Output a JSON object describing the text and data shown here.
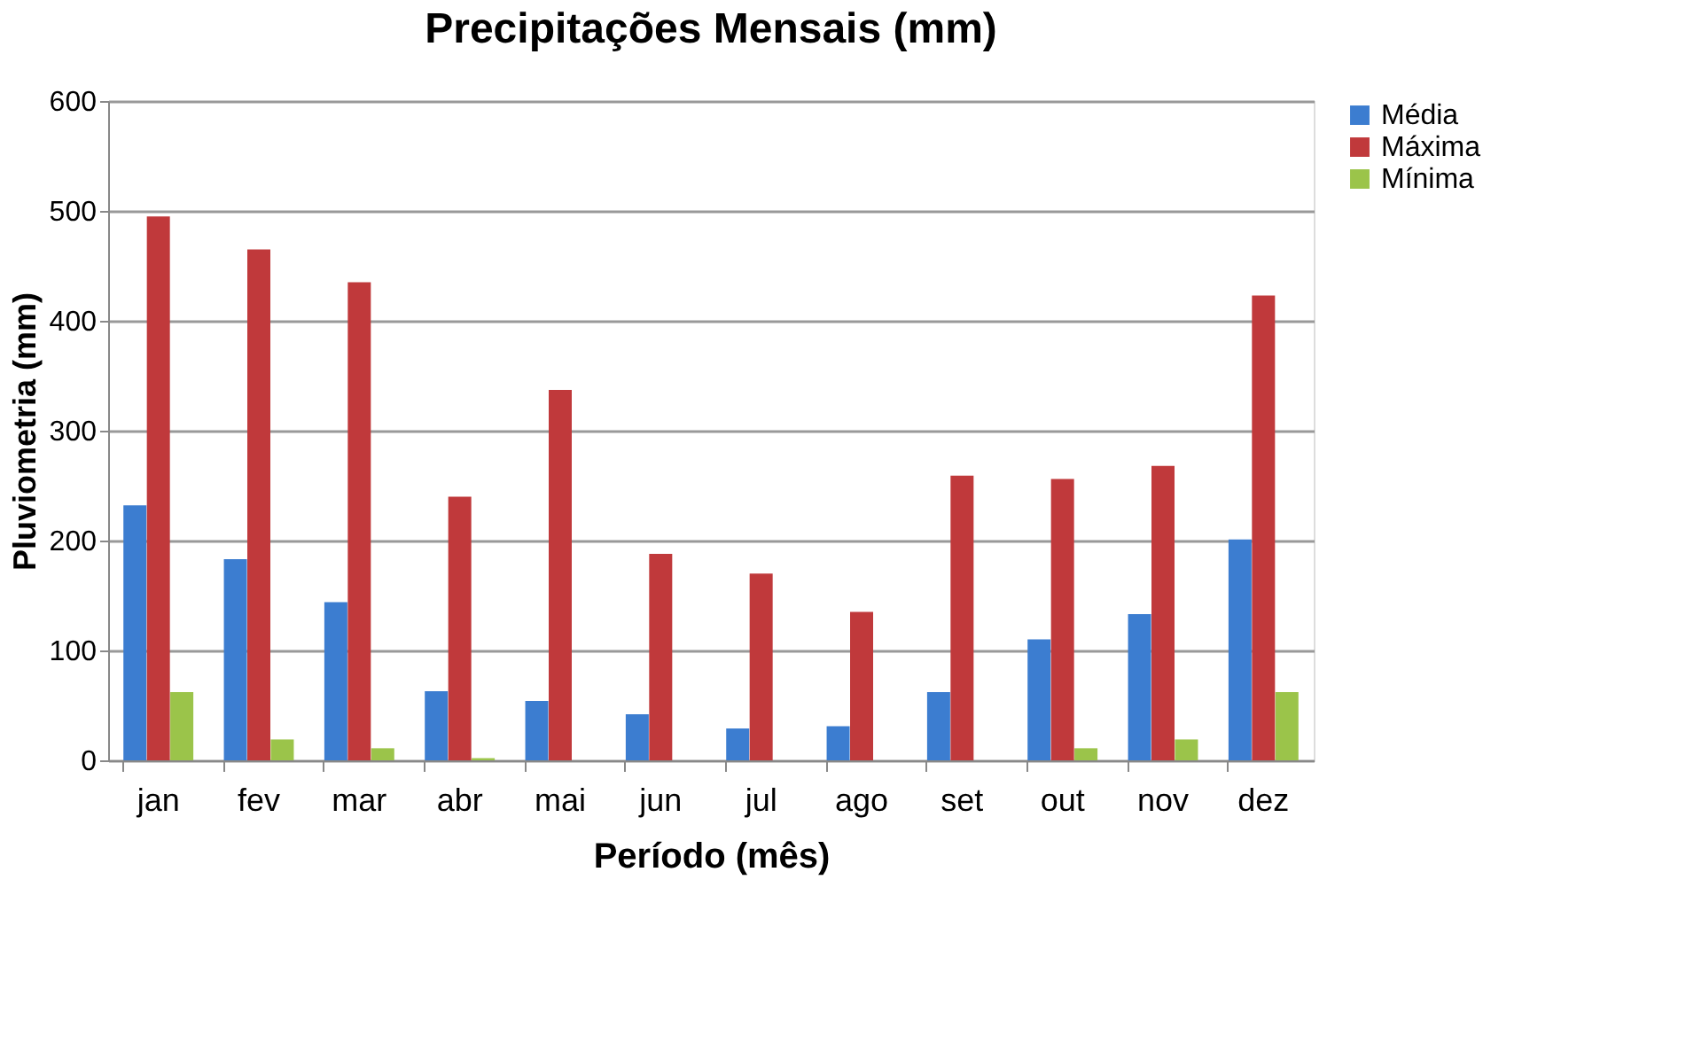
{
  "chart_data": {
    "type": "bar",
    "title": "Precipitações Mensais (mm)",
    "xlabel": "Período (mês)",
    "ylabel": "Pluviometria (mm)",
    "categories": [
      "jan",
      "fev",
      "mar",
      "abr",
      "mai",
      "jun",
      "jul",
      "ago",
      "set",
      "out",
      "nov",
      "dez"
    ],
    "series": [
      {
        "name": "Média",
        "color": "#3c7dd0",
        "values": [
          232,
          183,
          144,
          63,
          54,
          42,
          29,
          31,
          62,
          110,
          133,
          201
        ]
      },
      {
        "name": "Máxima",
        "color": "#c0393b",
        "values": [
          495,
          465,
          435,
          240,
          337,
          188,
          170,
          135,
          259,
          256,
          268,
          423
        ]
      },
      {
        "name": "Mínima",
        "color": "#9bc44a",
        "values": [
          62,
          19,
          11,
          2,
          0,
          0,
          0,
          0,
          0,
          11,
          19,
          62
        ]
      }
    ],
    "ylim": [
      0,
      600
    ],
    "yticks": [
      0,
      100,
      200,
      300,
      400,
      500,
      600
    ],
    "grid": "y",
    "legend": "right"
  }
}
